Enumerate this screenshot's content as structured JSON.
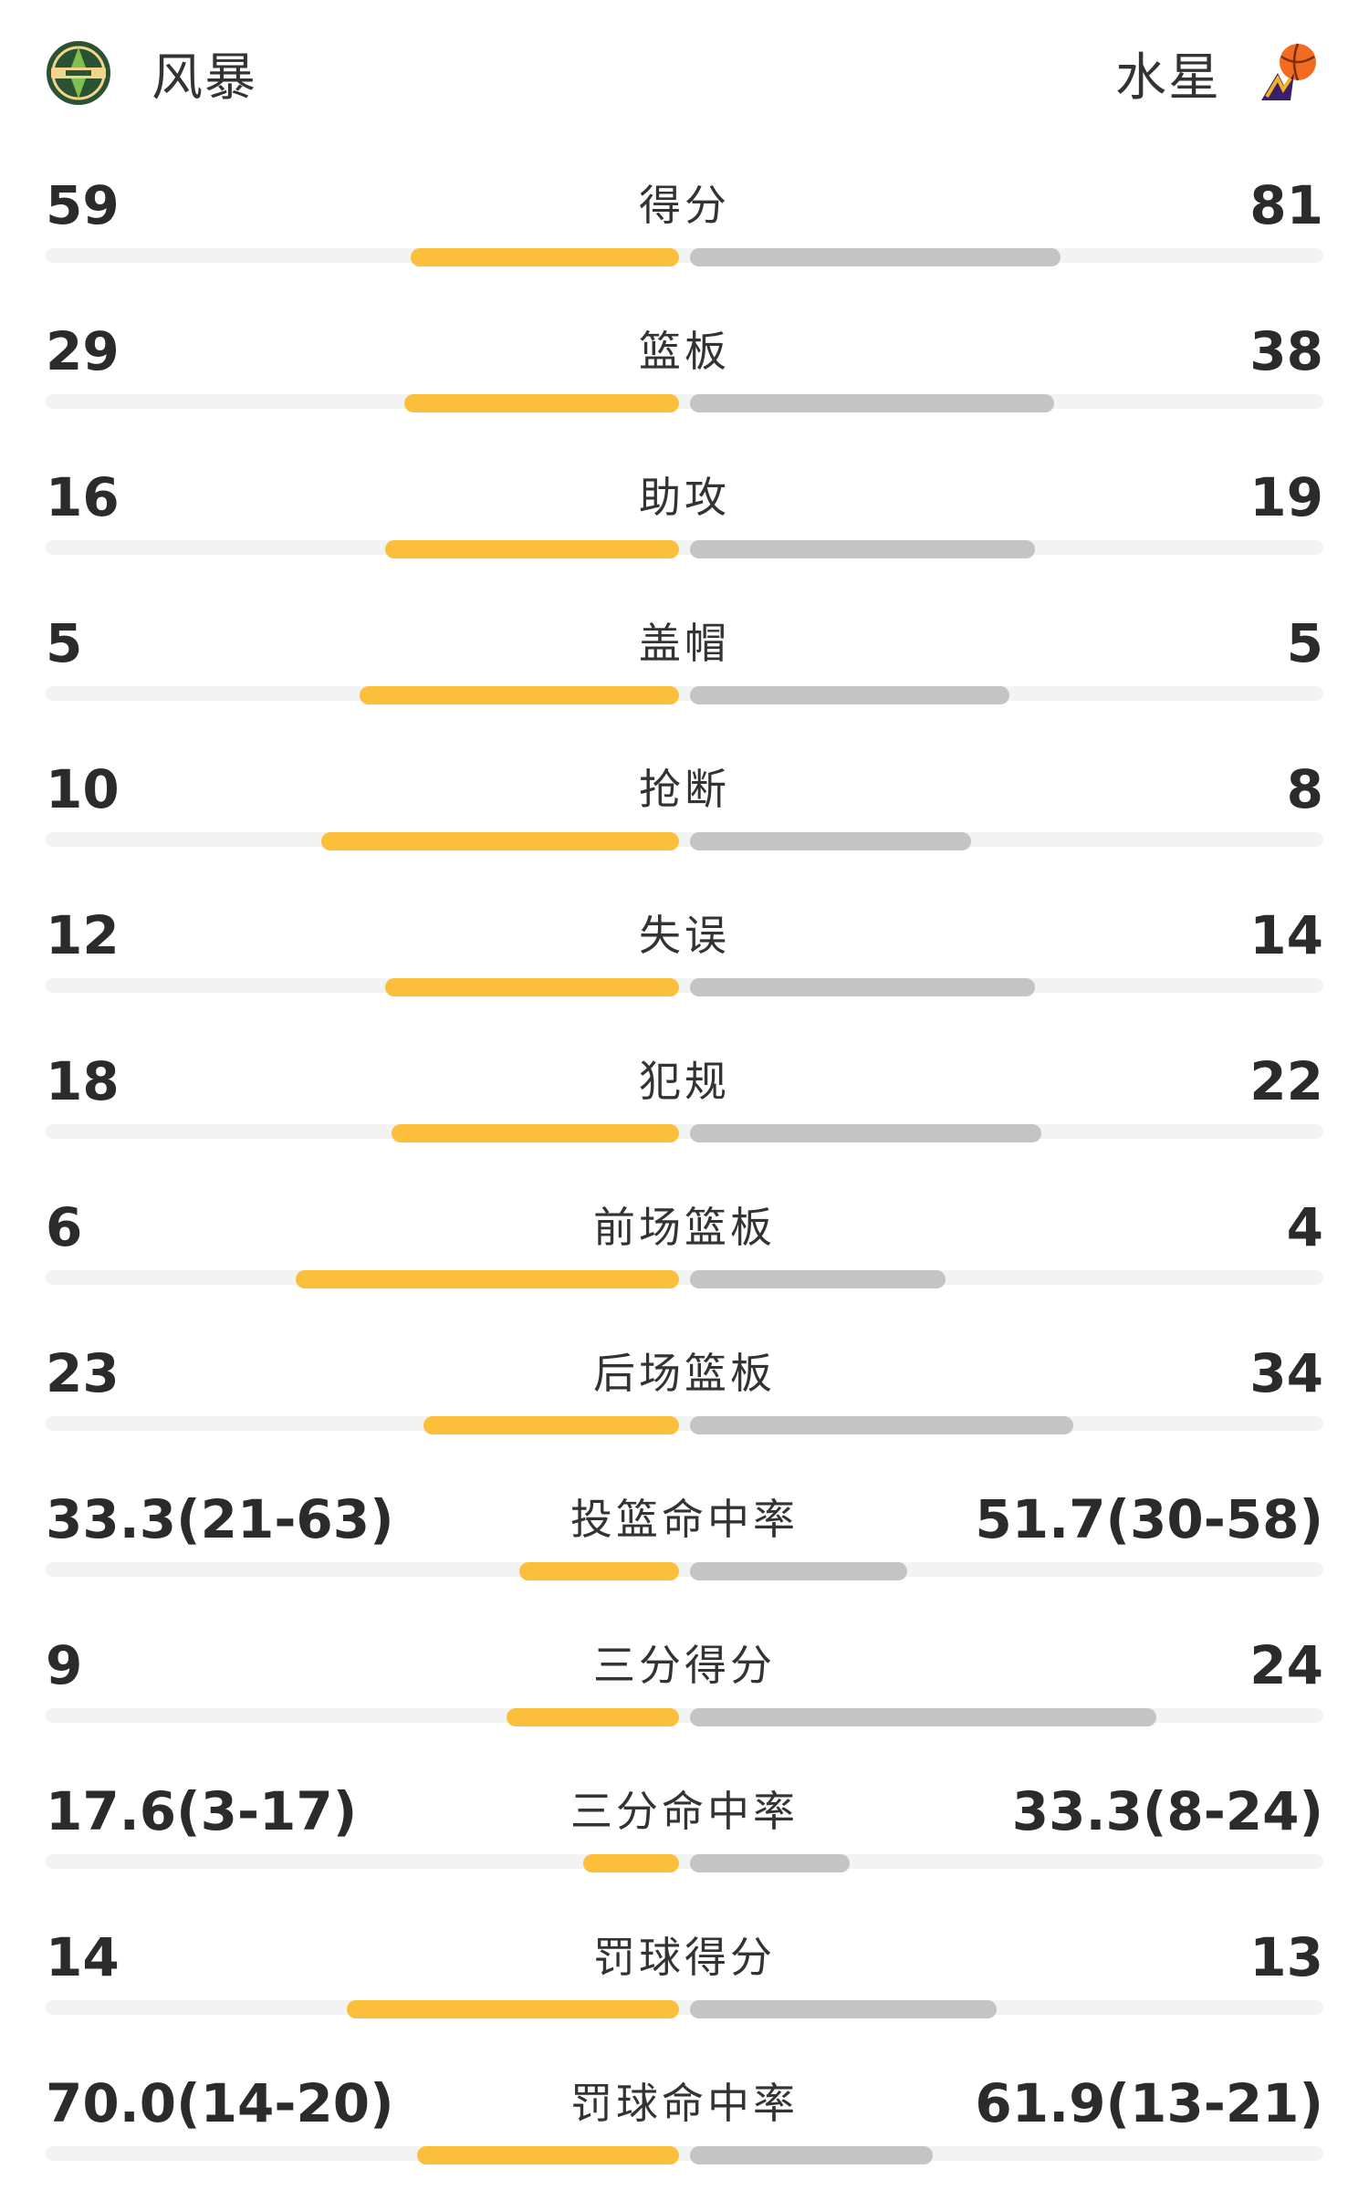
{
  "header": {
    "home_team": "风暴",
    "away_team": "水星",
    "home_logo_icon": "storm-team-logo-icon",
    "away_logo_icon": "mercury-team-logo-icon"
  },
  "colors": {
    "home_bar": "#fbbf3b",
    "away_bar": "#c4c4c4",
    "track": "#f3f3f3"
  },
  "stats": [
    {
      "label": "得分",
      "home": "59",
      "away": "81",
      "home_fill": 0.42,
      "away_fill": 0.58
    },
    {
      "label": "篮板",
      "home": "29",
      "away": "38",
      "home_fill": 0.43,
      "away_fill": 0.57
    },
    {
      "label": "助攻",
      "home": "16",
      "away": "19",
      "home_fill": 0.46,
      "away_fill": 0.54
    },
    {
      "label": "盖帽",
      "home": "5",
      "away": "5",
      "home_fill": 0.5,
      "away_fill": 0.5
    },
    {
      "label": "抢断",
      "home": "10",
      "away": "8",
      "home_fill": 0.56,
      "away_fill": 0.44
    },
    {
      "label": "失误",
      "home": "12",
      "away": "14",
      "home_fill": 0.46,
      "away_fill": 0.54
    },
    {
      "label": "犯规",
      "home": "18",
      "away": "22",
      "home_fill": 0.45,
      "away_fill": 0.55
    },
    {
      "label": "前场篮板",
      "home": "6",
      "away": "4",
      "home_fill": 0.6,
      "away_fill": 0.4
    },
    {
      "label": "后场篮板",
      "home": "23",
      "away": "34",
      "home_fill": 0.4,
      "away_fill": 0.6
    },
    {
      "label": "投篮命中率",
      "home": "33.3(21-63)",
      "away": "51.7(30-58)",
      "home_fill": 0.25,
      "away_fill": 0.34
    },
    {
      "label": "三分得分",
      "home": "9",
      "away": "24",
      "home_fill": 0.27,
      "away_fill": 0.73
    },
    {
      "label": "三分命中率",
      "home": "17.6(3-17)",
      "away": "33.3(8-24)",
      "home_fill": 0.15,
      "away_fill": 0.25
    },
    {
      "label": "罚球得分",
      "home": "14",
      "away": "13",
      "home_fill": 0.52,
      "away_fill": 0.48
    },
    {
      "label": "罚球命中率",
      "home": "70.0(14-20)",
      "away": "61.9(13-21)",
      "home_fill": 0.41,
      "away_fill": 0.38
    }
  ]
}
